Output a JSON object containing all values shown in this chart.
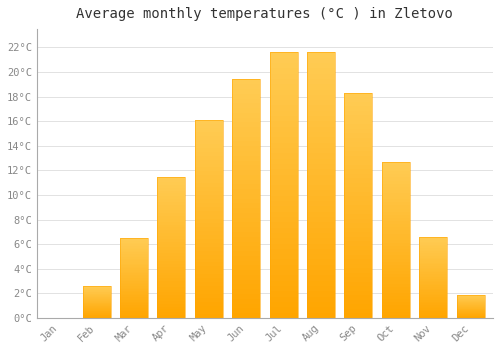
{
  "title": "Average monthly temperatures (°C ) in Zletovo",
  "months": [
    "Jan",
    "Feb",
    "Mar",
    "Apr",
    "May",
    "Jun",
    "Jul",
    "Aug",
    "Sep",
    "Oct",
    "Nov",
    "Dec"
  ],
  "values": [
    0.0,
    2.6,
    6.5,
    11.5,
    16.1,
    19.4,
    21.6,
    21.6,
    18.3,
    12.7,
    6.6,
    1.9
  ],
  "bar_color_light": "#FFCC44",
  "bar_color_dark": "#FFA500",
  "background_color": "#FFFFFF",
  "grid_color": "#DDDDDD",
  "yticks": [
    0,
    2,
    4,
    6,
    8,
    10,
    12,
    14,
    16,
    18,
    20,
    22
  ],
  "ylim": [
    0,
    23.5
  ],
  "title_fontsize": 10,
  "tick_fontsize": 7.5,
  "tick_label_color": "#888888",
  "title_color": "#333333"
}
